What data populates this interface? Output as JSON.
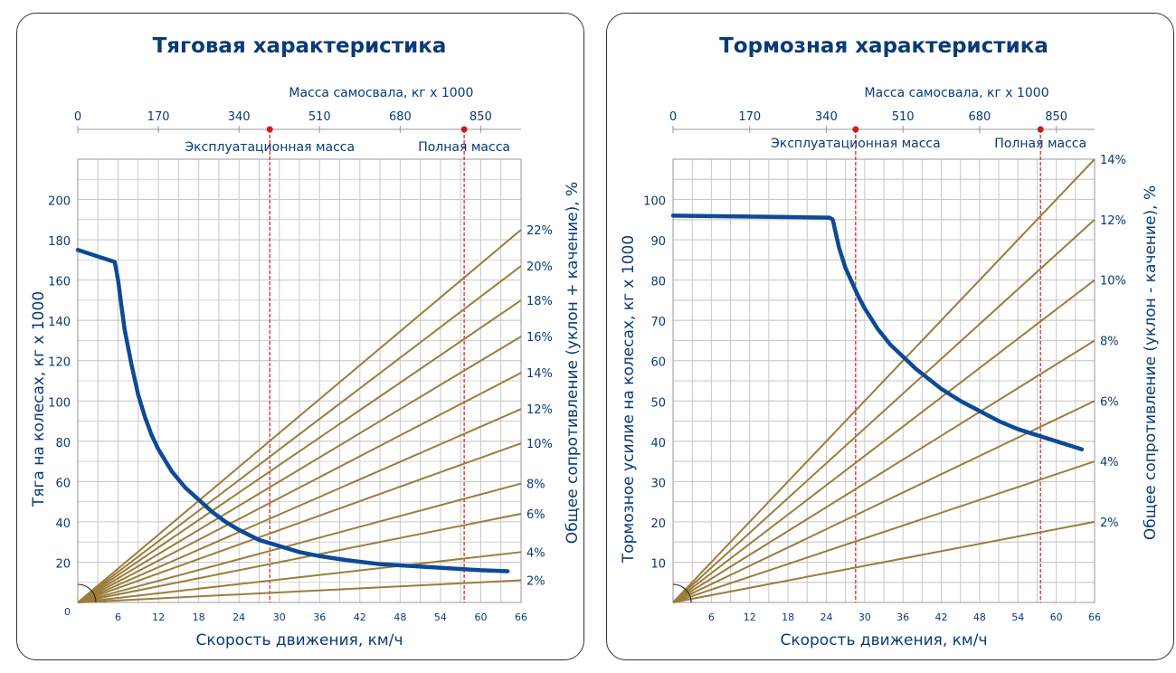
{
  "chart_data": [
    {
      "type": "line",
      "title": "Тяговая характеристика",
      "xlabel": "Скорость движения, км/ч",
      "ylabel": "Тяга на колесах, кг х 1000",
      "y2label": "Общее сопротивление (уклон + качение), %",
      "top_axis_label": "Масса самосвала, кг х 1000",
      "xlim": [
        0,
        66
      ],
      "ylim": [
        0,
        220
      ],
      "x_ticks": [
        "0",
        "6",
        "12",
        "18",
        "24",
        "30",
        "36",
        "42",
        "48",
        "54",
        "60",
        "66"
      ],
      "y_ticks": [
        "20",
        "40",
        "60",
        "80",
        "100",
        "120",
        "140",
        "160",
        "180",
        "200"
      ],
      "top_ticks": [
        "0",
        "170",
        "340",
        "510",
        "680",
        "850"
      ],
      "top_axis_max": 935,
      "mass_markers": [
        {
          "label": "Эксплуатационная масса",
          "mass": 405
        },
        {
          "label": "Полная масса",
          "mass": 815
        }
      ],
      "resistance_lines": [
        {
          "label": "2%",
          "value": 11
        },
        {
          "label": "4%",
          "value": 25
        },
        {
          "label": "6%",
          "value": 44
        },
        {
          "label": "8%",
          "value": 59
        },
        {
          "label": "10%",
          "value": 79
        },
        {
          "label": "12%",
          "value": 96
        },
        {
          "label": "14%",
          "value": 114
        },
        {
          "label": "16%",
          "value": 132
        },
        {
          "label": "18%",
          "value": 150
        },
        {
          "label": "20%",
          "value": 167
        },
        {
          "label": "22%",
          "value": 185
        }
      ],
      "curve": {
        "name": "Тяга",
        "x": [
          0,
          5.5,
          6,
          6.5,
          7,
          8,
          9,
          10,
          11,
          12,
          14,
          16,
          18,
          20,
          22,
          24,
          27,
          30,
          33,
          36,
          40,
          45,
          50,
          55,
          60,
          64
        ],
        "y": [
          175,
          169,
          160,
          147,
          135,
          118,
          103,
          92,
          83,
          76,
          65,
          57,
          51,
          45,
          40,
          36,
          31,
          28,
          25,
          23,
          21,
          19,
          18,
          17,
          16,
          15.5
        ]
      }
    },
    {
      "type": "line",
      "title": "Тормозная характеристика",
      "xlabel": "Скорость движения, км/ч",
      "ylabel": "Тормозное усилие на колесах, кг х 1000",
      "y2label": "Общее сопротивление (уклон - качение), %",
      "top_axis_label": "Масса самосвала, кг х 1000",
      "xlim": [
        0,
        66
      ],
      "ylim": [
        0,
        110
      ],
      "x_ticks": [
        "6",
        "12",
        "18",
        "24",
        "30",
        "36",
        "42",
        "48",
        "54",
        "60",
        "66"
      ],
      "y_ticks": [
        "10",
        "20",
        "30",
        "40",
        "50",
        "60",
        "70",
        "80",
        "90",
        "100"
      ],
      "top_ticks": [
        "0",
        "170",
        "340",
        "510",
        "680",
        "850"
      ],
      "top_axis_max": 935,
      "mass_markers": [
        {
          "label": "Эксплуатационная масса",
          "mass": 405
        },
        {
          "label": "Полная масса",
          "mass": 815
        }
      ],
      "resistance_lines": [
        {
          "label": "2%",
          "value": 20
        },
        {
          "label": "4%",
          "value": 35
        },
        {
          "label": "6%",
          "value": 50
        },
        {
          "label": "8%",
          "value": 65
        },
        {
          "label": "10%",
          "value": 80
        },
        {
          "label": "12%",
          "value": 95
        },
        {
          "label": "14%",
          "value": 110
        }
      ],
      "curve": {
        "name": "Тормозное усилие",
        "x": [
          0,
          10,
          20,
          24.5,
          25,
          26,
          27,
          28,
          29,
          30,
          32,
          34,
          36,
          38,
          40,
          42,
          45,
          48,
          51,
          54,
          57,
          60,
          62,
          64
        ],
        "y": [
          96,
          95.8,
          95.6,
          95.5,
          95,
          88,
          83,
          79.5,
          76,
          73,
          68,
          64,
          61,
          58,
          55.5,
          53,
          50,
          47.5,
          45,
          43,
          41.5,
          40,
          39,
          38
        ]
      }
    }
  ]
}
